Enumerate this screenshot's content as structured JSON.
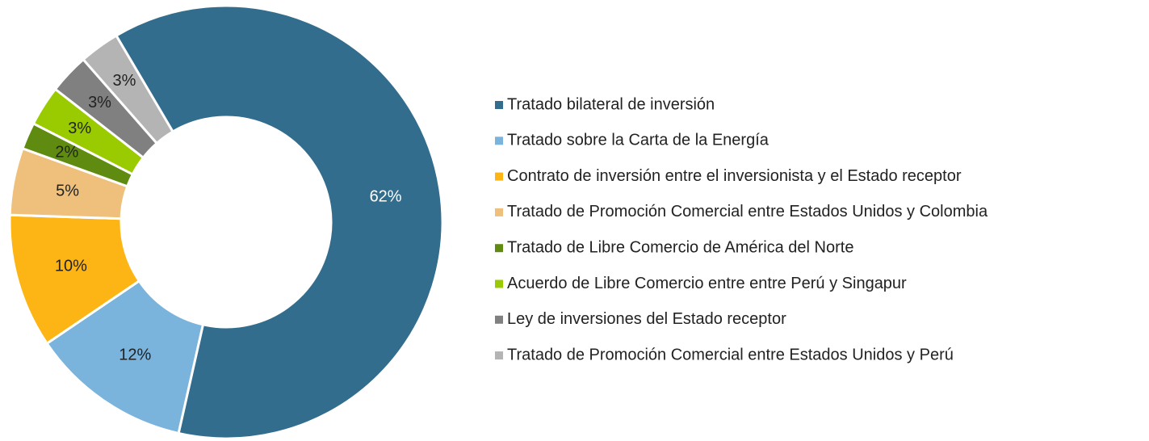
{
  "chart_data": {
    "type": "pie",
    "categories": [
      "Tratado bilateral de inversión",
      "Tratado sobre la Carta de la Energía",
      "Contrato de inversión entre el inversionista y el Estado receptor",
      "Tratado de Promoción Comercial entre Estados Unidos y Colombia",
      "Tratado de Libre Comercio de América del Norte",
      "Acuerdo de Libre Comercio entre entre Perú y Singapur",
      "Ley de inversiones del Estado receptor",
      "Tratado de Promoción Comercial entre Estados Unidos y Perú"
    ],
    "values": [
      62,
      12,
      10,
      5,
      2,
      3,
      3,
      3
    ],
    "value_labels": [
      "62%",
      "12%",
      "10%",
      "5%",
      "2%",
      "3%",
      "3%",
      "3%"
    ],
    "colors": [
      "#336d8d",
      "#7ab3dc",
      "#fdb515",
      "#eec07c",
      "#5f8b10",
      "#9acb00",
      "#808080",
      "#b4b4b4"
    ],
    "legend": "right"
  }
}
